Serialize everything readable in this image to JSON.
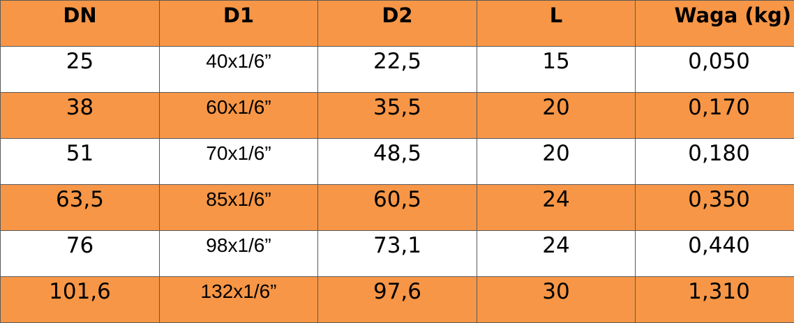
{
  "table": {
    "headers": [
      "DN",
      "D1",
      "D2",
      "L",
      "Waga (kg)"
    ],
    "rows": [
      [
        "25",
        "40x1/6”",
        "22,5",
        "15",
        "0,050"
      ],
      [
        "38",
        "60x1/6”",
        "35,5",
        "20",
        "0,170"
      ],
      [
        "51",
        "70x1/6”",
        "48,5",
        "20",
        "0,180"
      ],
      [
        "63,5",
        "85x1/6”",
        "60,5",
        "24",
        "0,350"
      ],
      [
        "76",
        "98x1/6”",
        "73,1",
        "24",
        "0,440"
      ],
      [
        "101,6",
        "132x1/6”",
        "97,6",
        "30",
        "1,310"
      ]
    ]
  },
  "colors": {
    "accent_orange": "#f79646",
    "row_white": "#ffffff",
    "border": "#5a5a5a",
    "text": "#000000"
  }
}
